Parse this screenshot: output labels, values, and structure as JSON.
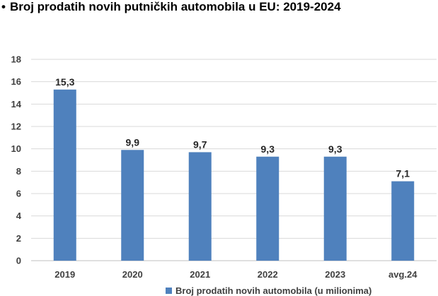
{
  "chart_data": {
    "type": "bar",
    "title": "Broj prodatih novih putničkih automobila u EU:  2019-2024",
    "categories": [
      "2019",
      "2020",
      "2021",
      "2022",
      "2023",
      "avg.24"
    ],
    "series": [
      {
        "name": "Broj  prodatih novih automobila (u milionima)",
        "values": [
          15.3,
          9.9,
          9.7,
          9.3,
          9.3,
          7.1
        ],
        "value_labels": [
          "15,3",
          "9,9",
          "9,7",
          "9,3",
          "9,3",
          "7,1"
        ],
        "color": "#4F81BD"
      }
    ],
    "ylim": [
      0,
      18
    ],
    "yticks": [
      0,
      2,
      4,
      6,
      8,
      10,
      12,
      14,
      16,
      18
    ],
    "grid": true,
    "legend": "bottom",
    "xlabel": "",
    "ylabel": ""
  }
}
